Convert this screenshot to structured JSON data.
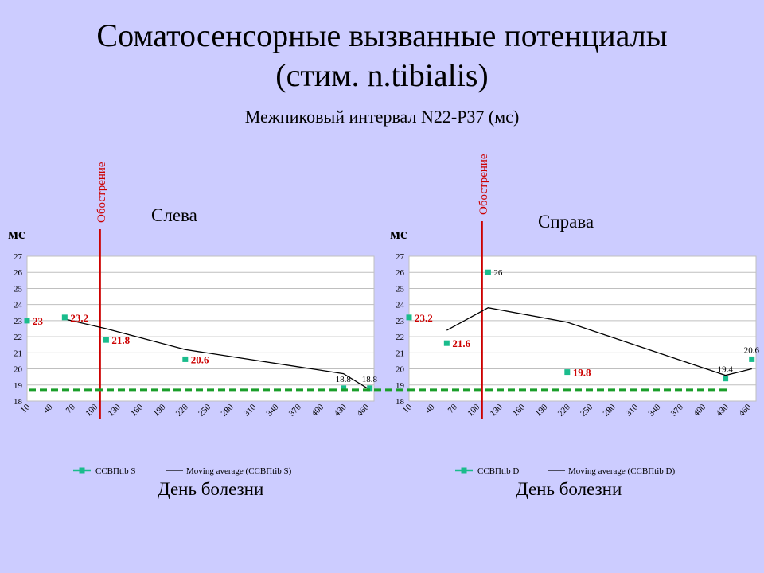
{
  "title_line1": "Соматосенсорные вызванные потенциалы",
  "title_line2": "(стим. n.tibialis)",
  "subtitle": "Межпиковый интервал N22-P37  (мс)",
  "unit": "мс",
  "flare_label": "Обострение",
  "colors": {
    "background": "#ccccff",
    "marker": "#1abc8c",
    "flare": "#cc0000",
    "baseline": "#1a9e2a",
    "moving_avg": "#000000"
  },
  "chart_data": [
    {
      "type": "line",
      "panel_label": "Слева",
      "xlabel": "День болезни",
      "ylabel": "мс",
      "ylim": [
        18,
        27
      ],
      "yticks": [
        18,
        19,
        20,
        21,
        22,
        23,
        24,
        25,
        26,
        27
      ],
      "categories": [
        "10",
        "40",
        "70",
        "100",
        "130",
        "160",
        "190",
        "220",
        "250",
        "280",
        "310",
        "340",
        "370",
        "400",
        "430",
        "460"
      ],
      "xlim": [
        10,
        460
      ],
      "flare_x": 107,
      "baseline_y": 18.7,
      "series": [
        {
          "name": "ССВПtib S",
          "kind": "marker",
          "x": [
            10,
            60,
            115,
            220,
            430,
            465
          ],
          "y": [
            23,
            23.2,
            21.8,
            20.6,
            18.8,
            18.8
          ],
          "labels": [
            "23",
            "23.2",
            "21.8",
            "20.6",
            "18.8",
            "18.8"
          ],
          "label_colors": [
            "#cc0000",
            "#cc0000",
            "#cc0000",
            "#cc0000",
            "#000000",
            "#000000"
          ]
        },
        {
          "name": "Moving average (ССВПtib S)",
          "kind": "line",
          "x": [
            60,
            115,
            220,
            430,
            465
          ],
          "y": [
            23.1,
            22.5,
            21.2,
            19.7,
            18.7
          ]
        }
      ]
    },
    {
      "type": "line",
      "panel_label": "Справа",
      "xlabel": "День болезни",
      "ylabel": "мс",
      "ylim": [
        18,
        27
      ],
      "yticks": [
        18,
        19,
        20,
        21,
        22,
        23,
        24,
        25,
        26,
        27
      ],
      "categories": [
        "10",
        "40",
        "70",
        "100",
        "130",
        "160",
        "190",
        "220",
        "250",
        "280",
        "310",
        "340",
        "370",
        "400",
        "430",
        "460"
      ],
      "xlim": [
        10,
        460
      ],
      "flare_x": 107,
      "baseline_y": 18.7,
      "series": [
        {
          "name": "ССВПtib D",
          "kind": "marker",
          "x": [
            10,
            60,
            115,
            220,
            430,
            465
          ],
          "y": [
            23.2,
            21.6,
            26,
            19.8,
            19.4,
            20.6
          ],
          "labels": [
            "23.2",
            "21.6",
            "26",
            "19.8",
            "19.4",
            "20.6"
          ],
          "label_colors": [
            "#cc0000",
            "#cc0000",
            "#000000",
            "#cc0000",
            "#000000",
            "#000000"
          ]
        },
        {
          "name": "Moving average (ССВПtib D)",
          "kind": "line",
          "x": [
            60,
            115,
            220,
            430,
            465
          ],
          "y": [
            22.4,
            23.8,
            22.9,
            19.6,
            20.0
          ]
        }
      ]
    }
  ]
}
